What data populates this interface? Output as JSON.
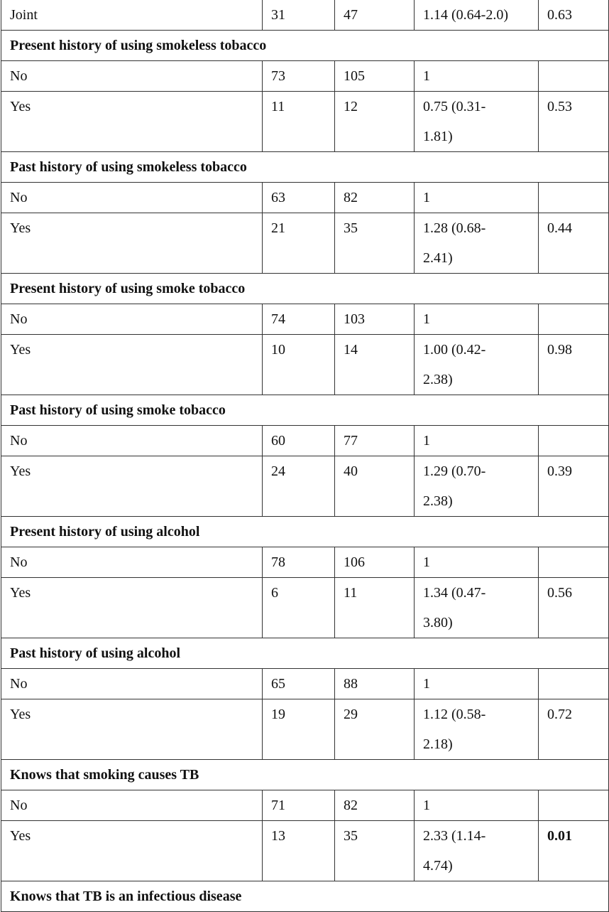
{
  "table": {
    "rows": [
      {
        "cells": [
          "Joint",
          "31",
          "47",
          "1.14 (0.64-2.0)",
          "0.63"
        ]
      },
      {
        "section": "Present history of using smokeless tobacco"
      },
      {
        "cells": [
          "No",
          "73",
          "105",
          "1"
        ]
      },
      {
        "cells": [
          "Yes",
          "11",
          "12",
          "0.75 (0.31-1.81)",
          "0.53"
        ]
      },
      {
        "section": "Past history of using smokeless tobacco"
      },
      {
        "cells": [
          "No",
          "63",
          "82",
          "1"
        ]
      },
      {
        "cells": [
          "Yes",
          "21",
          "35",
          "1.28 (0.68-2.41)",
          "0.44"
        ]
      },
      {
        "section": "Present history of using smoke tobacco"
      },
      {
        "cells": [
          "No",
          "74",
          "103",
          "1"
        ]
      },
      {
        "cells": [
          "Yes",
          "10",
          "14",
          "1.00 (0.42-2.38)",
          "0.98"
        ]
      },
      {
        "section": "Past history of using smoke tobacco"
      },
      {
        "cells": [
          "No",
          "60",
          "77",
          "1"
        ]
      },
      {
        "cells": [
          "Yes",
          "24",
          "40",
          "1.29 (0.70-2.38)",
          "0.39"
        ]
      },
      {
        "section": "Present history of using alcohol"
      },
      {
        "cells": [
          "No",
          "78",
          "106",
          "1"
        ]
      },
      {
        "cells": [
          "Yes",
          "6",
          "11",
          "1.34 (0.47-3.80)",
          "0.56"
        ]
      },
      {
        "section": "Past history of using alcohol"
      },
      {
        "cells": [
          "No",
          "65",
          "88",
          "1"
        ]
      },
      {
        "cells": [
          "Yes",
          "19",
          "29",
          "1.12 (0.58-2.18)",
          "0.72"
        ]
      },
      {
        "section": "Knows that smoking causes TB"
      },
      {
        "cells": [
          "No",
          "71",
          "82",
          "1"
        ]
      },
      {
        "cells": [
          "Yes",
          "13",
          "35",
          "2.33 (1.14-4.74)",
          "0.01"
        ],
        "bold_cell": 4
      },
      {
        "section": "Knows that TB is an infectious disease"
      }
    ]
  }
}
